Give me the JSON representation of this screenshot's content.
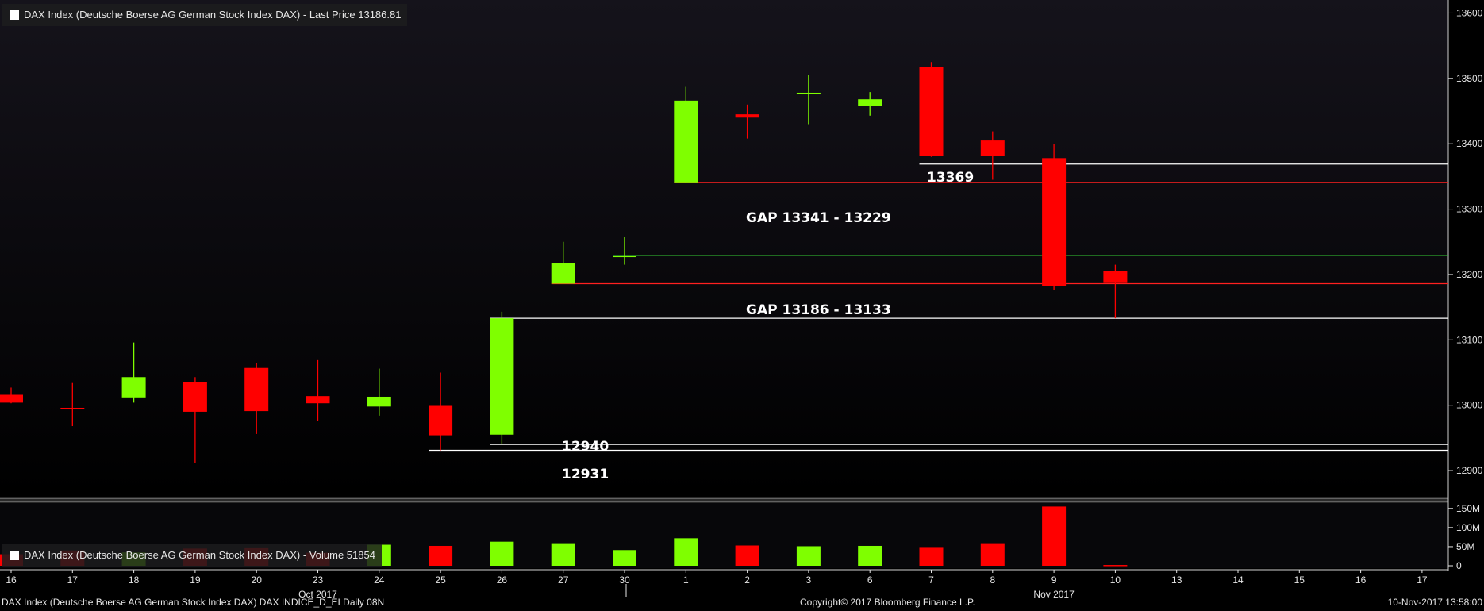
{
  "colors": {
    "up": "#7fff00",
    "down": "#ff0000",
    "background": "#000000",
    "axis": "#e6e6e6"
  },
  "price_legend": "DAX Index (Deutsche Boerse AG German Stock Index DAX) - Last Price 13186.81",
  "volume_legend": "DAX Index (Deutsche Boerse AG German Stock Index DAX) - Volume 51854",
  "footer": {
    "left": "DAX Index (Deutsche Boerse AG German Stock Index DAX) DAX INDICE_D_EI  Daily 08N",
    "center": "Copyright© 2017 Bloomberg Finance L.P.",
    "right": "10-Nov-2017 13:58:00"
  },
  "chart_data": {
    "type": "candlestick",
    "price_axis": {
      "range": [
        12860,
        13620
      ],
      "ticks": [
        12900,
        13000,
        13100,
        13200,
        13300,
        13400,
        13500,
        13600
      ]
    },
    "volume_axis": {
      "range": [
        0,
        160
      ],
      "ticks": [
        0,
        50,
        100,
        150
      ],
      "tick_labels": [
        "0",
        "50M",
        "100M",
        "150M"
      ]
    },
    "x_labels": [
      "16",
      "17",
      "18",
      "19",
      "20",
      "23",
      "24",
      "25",
      "26",
      "27",
      "30",
      "1",
      "2",
      "3",
      "6",
      "7",
      "8",
      "9",
      "10",
      "13",
      "14",
      "15",
      "16",
      "17"
    ],
    "month_labels": [
      {
        "label": "Oct 2017",
        "at": 5
      },
      {
        "label": "Nov 2017",
        "at": 17
      }
    ],
    "candles": [
      {
        "date": "16",
        "open": 13016,
        "high": 13027,
        "low": 13003,
        "close": 13004,
        "volume": 30
      },
      {
        "date": "17",
        "open": 12996,
        "high": 13034,
        "low": 12968,
        "close": 12995,
        "volume": 40
      },
      {
        "date": "18",
        "open": 13012,
        "high": 13096,
        "low": 13004,
        "close": 13043,
        "volume": 35
      },
      {
        "date": "19",
        "open": 13036,
        "high": 13043,
        "low": 12912,
        "close": 12990,
        "volume": 45
      },
      {
        "date": "20",
        "open": 13057,
        "high": 13064,
        "low": 12956,
        "close": 12991,
        "volume": 48
      },
      {
        "date": "23",
        "open": 13014,
        "high": 13069,
        "low": 12976,
        "close": 13003,
        "volume": 34
      },
      {
        "date": "24",
        "open": 12998,
        "high": 13056,
        "low": 12984,
        "close": 13013,
        "volume": 55
      },
      {
        "date": "25",
        "open": 12999,
        "high": 13050,
        "low": 12931,
        "close": 12954,
        "volume": 52
      },
      {
        "date": "26",
        "open": 12955,
        "high": 13143,
        "low": 12940,
        "close": 13133,
        "volume": 63
      },
      {
        "date": "27",
        "open": 13186,
        "high": 13250,
        "low": 13186,
        "close": 13217,
        "volume": 59
      },
      {
        "date": "30",
        "open": 13227,
        "high": 13257,
        "low": 13215,
        "close": 13229,
        "volume": 41
      },
      {
        "date": "1",
        "open": 13341,
        "high": 13487,
        "low": 13341,
        "close": 13466,
        "volume": 72
      },
      {
        "date": "2",
        "open": 13445,
        "high": 13460,
        "low": 13408,
        "close": 13440,
        "volume": 53
      },
      {
        "date": "3",
        "open": 13476,
        "high": 13505,
        "low": 13430,
        "close": 13478,
        "volume": 51
      },
      {
        "date": "6",
        "open": 13458,
        "high": 13479,
        "low": 13443,
        "close": 13468,
        "volume": 52
      },
      {
        "date": "7",
        "open": 13517,
        "high": 13525,
        "low": 13380,
        "close": 13381,
        "volume": 49
      },
      {
        "date": "8",
        "open": 13405,
        "high": 13419,
        "low": 13345,
        "close": 13382,
        "volume": 59
      },
      {
        "date": "9",
        "open": 13378,
        "high": 13400,
        "low": 13176,
        "close": 13182,
        "volume": 155
      },
      {
        "date": "10",
        "open": 13205,
        "high": 13215,
        "low": 13133,
        "close": 13187,
        "volume": 2
      }
    ],
    "annotations": [
      {
        "text": "13369",
        "type": "label"
      },
      {
        "text": "GAP 13341 - 13229",
        "type": "label"
      },
      {
        "text": "GAP 13186 - 13133",
        "type": "label"
      },
      {
        "text": "12940",
        "type": "label"
      },
      {
        "text": "12931",
        "type": "label"
      }
    ],
    "levels": [
      {
        "value": 13369,
        "color": "#ffffff",
        "from": 15
      },
      {
        "value": 13341,
        "color": "#ff2020",
        "from": 11
      },
      {
        "value": 13229,
        "color": "#33cc33",
        "from": 10
      },
      {
        "value": 13186,
        "color": "#ff2020",
        "from": 9
      },
      {
        "value": 13133,
        "color": "#ffffff",
        "from": 8
      },
      {
        "value": 12940,
        "color": "#ffffff",
        "from": 8
      },
      {
        "value": 12931,
        "color": "#ffffff",
        "from": 7
      }
    ]
  }
}
